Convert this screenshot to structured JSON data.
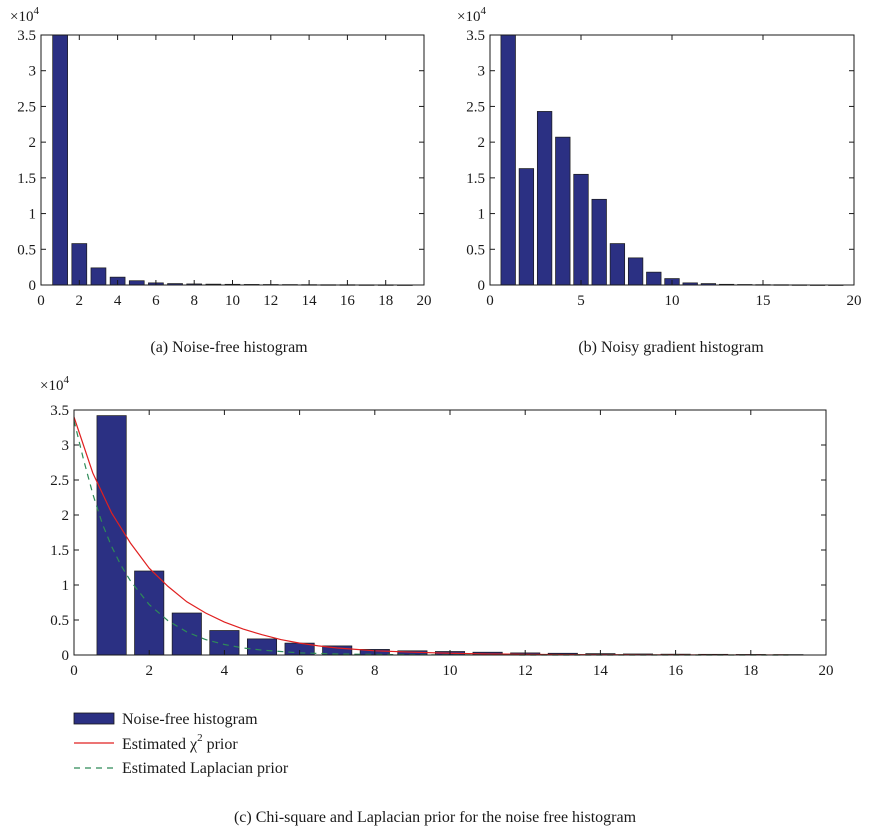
{
  "charts": [
    {
      "id": "a",
      "type": "bar",
      "caption": "(a)  Noise-free histogram",
      "multiplier": "×10",
      "multiplier_exp": "4",
      "xlim": [
        0,
        20
      ],
      "ylim": [
        0,
        3.5
      ],
      "xticks": [
        0,
        2,
        4,
        6,
        8,
        10,
        12,
        14,
        16,
        18,
        20
      ],
      "yticks": [
        0,
        0.5,
        1,
        1.5,
        2,
        2.5,
        3,
        3.5
      ],
      "xticklabels": [
        "0",
        "2",
        "4",
        "6",
        "8",
        "10",
        "12",
        "14",
        "16",
        "18",
        "20"
      ],
      "yticklabels": [
        "0",
        "0.5",
        "1",
        "1.5",
        "2",
        "2.5",
        "3",
        "3.5"
      ],
      "bar_color": "#2b3083",
      "bar_x": [
        1,
        2,
        3,
        4,
        5,
        6,
        7,
        8,
        9,
        10,
        11,
        12,
        13,
        14,
        15,
        16,
        17,
        18,
        19
      ],
      "bar_values": [
        3.5,
        0.58,
        0.24,
        0.11,
        0.06,
        0.03,
        0.02,
        0.015,
        0.012,
        0.01,
        0.008,
        0.007,
        0.006,
        0.005,
        0.004,
        0.004,
        0.003,
        0.003,
        0.002
      ]
    },
    {
      "id": "b",
      "type": "bar",
      "caption": "(b)  Noisy gradient histogram",
      "multiplier": "×10",
      "multiplier_exp": "4",
      "xlim": [
        0,
        20
      ],
      "ylim": [
        0,
        3.5
      ],
      "xticks": [
        0,
        5,
        10,
        15,
        20
      ],
      "yticks": [
        0,
        0.5,
        1,
        1.5,
        2,
        2.5,
        3,
        3.5
      ],
      "xticklabels": [
        "0",
        "5",
        "10",
        "15",
        "20"
      ],
      "yticklabels": [
        "0",
        "0.5",
        "1",
        "1.5",
        "2",
        "2.5",
        "3",
        "3.5"
      ],
      "bar_color": "#2b3083",
      "bar_x": [
        1,
        2,
        3,
        4,
        5,
        6,
        7,
        8,
        9,
        10,
        11,
        12,
        13,
        14,
        15,
        16,
        17,
        18,
        19
      ],
      "bar_values": [
        3.5,
        1.63,
        2.43,
        2.07,
        1.55,
        1.2,
        0.58,
        0.38,
        0.18,
        0.09,
        0.03,
        0.02,
        0.01,
        0.007,
        0.005,
        0.004,
        0.003,
        0.002,
        0.002
      ]
    },
    {
      "id": "c",
      "type": "bar",
      "caption": "(c)  Chi-square and Laplacian prior for the noise free histogram",
      "multiplier": "×10",
      "multiplier_exp": "4",
      "xlim": [
        0,
        20
      ],
      "ylim": [
        0,
        3.5
      ],
      "xticks": [
        0,
        2,
        4,
        6,
        8,
        10,
        12,
        14,
        16,
        18,
        20
      ],
      "yticks": [
        0,
        0.5,
        1,
        1.5,
        2,
        2.5,
        3,
        3.5
      ],
      "xticklabels": [
        "0",
        "2",
        "4",
        "6",
        "8",
        "10",
        "12",
        "14",
        "16",
        "18",
        "20"
      ],
      "yticklabels": [
        "0",
        "0.5",
        "1",
        "1.5",
        "2",
        "2.5",
        "3",
        "3.5"
      ],
      "bar_color": "#2b3083",
      "bar_x": [
        1,
        2,
        3,
        4,
        5,
        6,
        7,
        8,
        9,
        10,
        11,
        12,
        13,
        14,
        15,
        16,
        17,
        18,
        19
      ],
      "bar_values": [
        3.42,
        1.2,
        0.6,
        0.35,
        0.23,
        0.17,
        0.13,
        0.08,
        0.06,
        0.05,
        0.04,
        0.03,
        0.025,
        0.02,
        0.015,
        0.012,
        0.01,
        0.008,
        0.006
      ],
      "series": [
        {
          "name": "Estimated χ² prior",
          "color": "#e02020",
          "style": "solid",
          "x": [
            0,
            0.5,
            1,
            1.5,
            2,
            2.5,
            3,
            3.5,
            4,
            4.5,
            5,
            5.5,
            6,
            6.5,
            7,
            7.5,
            8,
            9,
            10,
            11,
            12,
            13,
            14,
            15,
            16,
            17,
            18,
            19
          ],
          "y": [
            3.4,
            2.6,
            2.03,
            1.6,
            1.24,
            0.98,
            0.76,
            0.6,
            0.47,
            0.37,
            0.29,
            0.22,
            0.17,
            0.13,
            0.1,
            0.08,
            0.06,
            0.04,
            0.025,
            0.015,
            0.01,
            0.006,
            0.004,
            0.003,
            0.002,
            0.001,
            0.001,
            0.001
          ]
        },
        {
          "name": "Estimated Laplacian prior",
          "color": "#2e8b57",
          "style": "dashed",
          "x": [
            0,
            0.25,
            0.5,
            0.75,
            1,
            1.25,
            1.5,
            2,
            2.5,
            3,
            3.5,
            4,
            4.5,
            5,
            5.5,
            6,
            7,
            8,
            9,
            10,
            11,
            12,
            13,
            14,
            15,
            16,
            17,
            18,
            19
          ],
          "y": [
            3.35,
            2.8,
            2.3,
            1.88,
            1.55,
            1.28,
            1.06,
            0.72,
            0.49,
            0.33,
            0.22,
            0.15,
            0.1,
            0.07,
            0.05,
            0.03,
            0.015,
            0.008,
            0.004,
            0.002,
            0.001,
            0.0005,
            0.0003,
            0.0002,
            0.0001,
            0.0001,
            0.0001,
            0.0001,
            0.0001
          ]
        }
      ],
      "legend": {
        "placement": "bottom-left",
        "items": [
          {
            "label": "Noise-free histogram",
            "kind": "bar"
          },
          {
            "label": "Estimated χ",
            "sup": "2",
            "label_after": " prior",
            "kind": "solid"
          },
          {
            "label": "Estimated Laplacian prior",
            "kind": "dashed"
          }
        ]
      }
    }
  ]
}
